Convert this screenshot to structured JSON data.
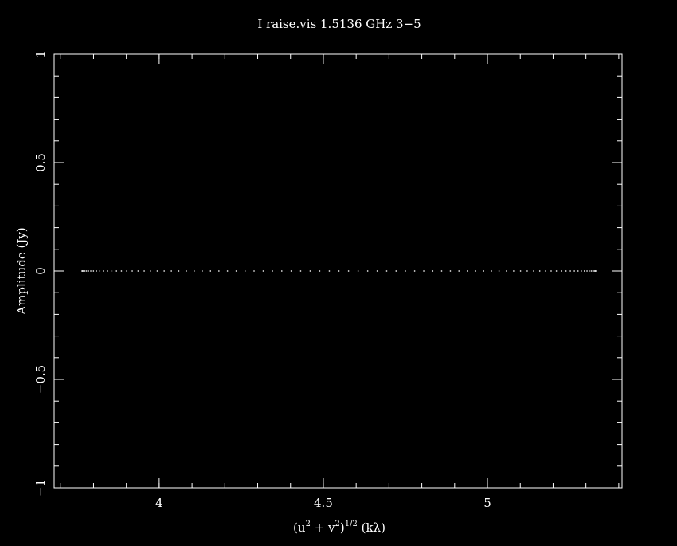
{
  "chart_data": {
    "type": "scatter",
    "title": "I raise.vis 1.5136 GHz  3−5",
    "xlabel": {
      "base": "(u",
      "sup1": "2",
      "mid": " + v",
      "sup2": "2",
      "close": ")",
      "sup3": "1/2",
      "unit": " (kλ)"
    },
    "ylabel": "Amplitude (Jy)",
    "xlim": [
      3.68,
      5.41
    ],
    "ylim": [
      -1,
      1
    ],
    "x_ticks": [
      {
        "value": 4,
        "label": "4"
      },
      {
        "value": 4.5,
        "label": "4.5"
      },
      {
        "value": 5,
        "label": "5"
      }
    ],
    "y_ticks": [
      {
        "value": -1,
        "label": "−1"
      },
      {
        "value": -0.5,
        "label": "−0.5"
      },
      {
        "value": 0,
        "label": "0"
      },
      {
        "value": 0.5,
        "label": "0.5"
      },
      {
        "value": 1,
        "label": "1"
      }
    ],
    "x_minor_step": 0.1,
    "y_minor_step": 0.1,
    "series": [
      {
        "x_start": 3.765,
        "x_end": 5.33,
        "y": 0,
        "point_count": 85
      }
    ],
    "colors": {
      "background": "#000000",
      "foreground": "#ffffff"
    }
  }
}
